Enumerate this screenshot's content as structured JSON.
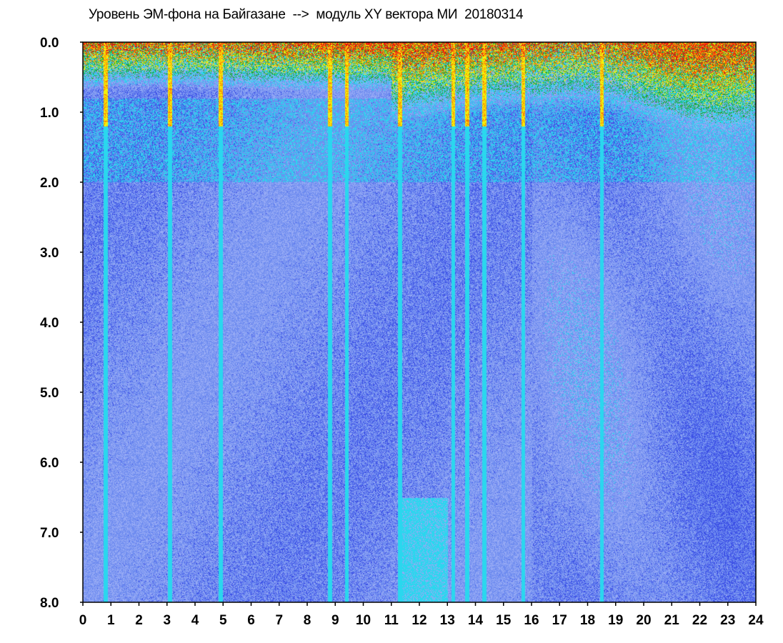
{
  "title": "Уровень ЭМ-фона на Байгазане  -->  модуль XY вектора МИ  20180314",
  "chart_data": {
    "type": "heatmap",
    "title": "Уровень ЭМ-фона на Байгазане  -->  модуль XY вектора МИ  20180314",
    "xlabel": "",
    "ylabel": "",
    "x_ticks": [
      0,
      1,
      2,
      3,
      4,
      5,
      6,
      7,
      8,
      9,
      10,
      11,
      12,
      13,
      14,
      15,
      16,
      17,
      18,
      19,
      20,
      21,
      22,
      23,
      24
    ],
    "y_ticks": [
      "0.0",
      "1.0",
      "2.0",
      "3.0",
      "4.0",
      "5.0",
      "6.0",
      "7.0",
      "8.0"
    ],
    "xlim": [
      0,
      24
    ],
    "ylim": [
      0,
      8
    ],
    "y_inverted": true,
    "grid": false,
    "colormap": [
      "#0b14d6",
      "#3c50e6",
      "#6e8cf0",
      "#96aaf5",
      "#2ad7ee",
      "#1fa83a",
      "#f2f20a",
      "#ff7a00",
      "#e81010"
    ],
    "background_color": "#5c78e8",
    "disturbance_hours": [
      0.8,
      3.1,
      4.9,
      8.8,
      9.4,
      11.3,
      13.2,
      13.7,
      14.3,
      15.7,
      18.5
    ]
  }
}
